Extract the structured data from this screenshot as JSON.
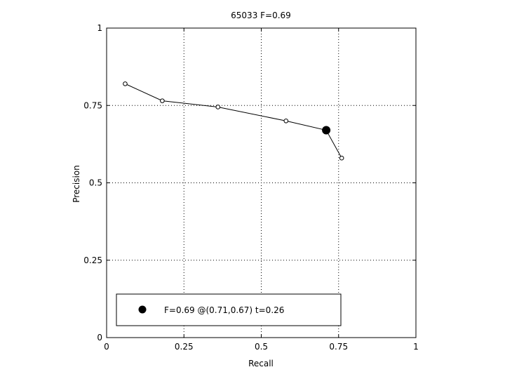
{
  "chart_data": {
    "type": "line",
    "title": "65033 F=0.69",
    "xlabel": "Recall",
    "ylabel": "Precision",
    "xlim": [
      0,
      1
    ],
    "ylim": [
      0,
      1
    ],
    "grid": true,
    "xticks": [
      0,
      0.25,
      0.5,
      0.75,
      1
    ],
    "yticks": [
      0,
      0.25,
      0.5,
      0.75,
      1
    ],
    "xtick_labels": [
      "0",
      "0.25",
      "0.5",
      "0.75",
      "1"
    ],
    "ytick_labels": [
      "0",
      "0.25",
      "0.5",
      "0.75",
      "1"
    ],
    "series": [
      {
        "x": [
          0.06,
          0.18,
          0.36,
          0.58,
          0.71,
          0.76
        ],
        "y": [
          0.82,
          0.765,
          0.745,
          0.7,
          0.67,
          0.58
        ]
      }
    ],
    "best_point": {
      "x": 0.71,
      "y": 0.67
    },
    "legend": {
      "label": "F=0.69 @(0.71,0.67) t=0.26",
      "placement": "bottom-left"
    }
  }
}
